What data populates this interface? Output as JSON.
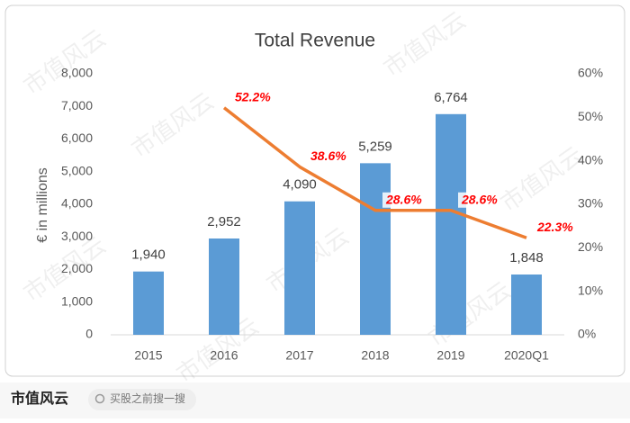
{
  "chart_data": {
    "type": "bar",
    "title": "Total Revenue",
    "y_label": "€ in millions",
    "categories": [
      "2015",
      "2016",
      "2017",
      "2018",
      "2019",
      "2020Q1"
    ],
    "series": [
      {
        "type": "bar",
        "color": "#5b9bd5",
        "values": [
          1940,
          2952,
          4090,
          5259,
          6764,
          1848
        ],
        "value_labels": [
          "1,940",
          "2,952",
          "4,090",
          "5,259",
          "6,764",
          "1,848"
        ]
      },
      {
        "type": "line",
        "axis": "y2",
        "color": "#ed7d31",
        "values": [
          null,
          52.2,
          38.6,
          28.6,
          28.6,
          22.3
        ],
        "value_labels": [
          null,
          "52.2%",
          "38.6%",
          "28.6%",
          "28.6%",
          "22.3%"
        ]
      }
    ],
    "ylim": [
      0,
      8000
    ],
    "yticks": [
      0,
      {
        "value": 1000,
        "label": "1,000"
      },
      {
        "value": 2000,
        "label": "2,000"
      },
      {
        "value": 3000,
        "label": "3,000"
      },
      {
        "value": 4000,
        "label": "4,000"
      },
      {
        "value": 5000,
        "label": "5,000"
      },
      {
        "value": 6000,
        "label": "6,000"
      },
      {
        "value": 7000,
        "label": "7,000"
      },
      {
        "value": 8000,
        "label": "8,000"
      }
    ],
    "y2lim": [
      0,
      60
    ],
    "y2ticks": [
      {
        "value": 0,
        "label": "0%"
      },
      {
        "value": 10,
        "label": "10%"
      },
      {
        "value": 20,
        "label": "20%"
      },
      {
        "value": 30,
        "label": "30%"
      },
      {
        "value": 40,
        "label": "40%"
      },
      {
        "value": 50,
        "label": "50%"
      },
      {
        "value": 60,
        "label": "60%"
      }
    ],
    "grid": false
  },
  "watermark": "市值风云",
  "footer": {
    "logo": "市值风云",
    "search_placeholder": "买股之前搜一搜"
  }
}
